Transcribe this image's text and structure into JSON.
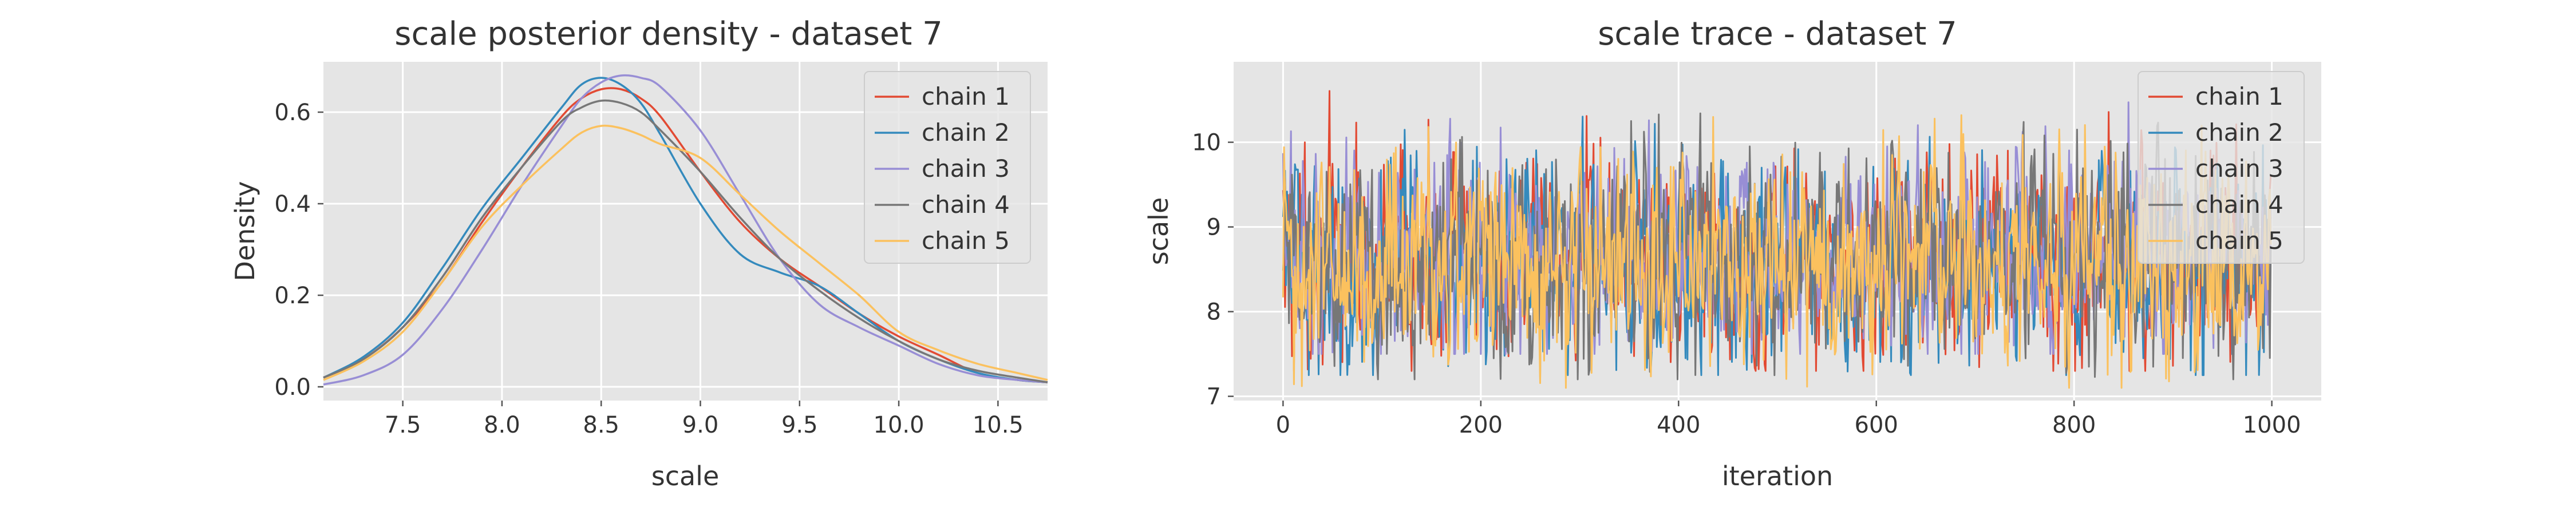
{
  "chart_data": [
    {
      "type": "line",
      "title": "scale posterior density - dataset 7",
      "xlabel": "scale",
      "ylabel": "Density",
      "xlim": [
        7.1,
        10.75
      ],
      "ylim": [
        -0.03,
        0.71
      ],
      "xticks": [
        7.5,
        8.0,
        8.5,
        9.0,
        9.5,
        10.0,
        10.5
      ],
      "xtick_labels": [
        "7.5",
        "8.0",
        "8.5",
        "9.0",
        "9.5",
        "10.0",
        "10.5"
      ],
      "yticks": [
        0.0,
        0.2,
        0.4,
        0.6
      ],
      "ytick_labels": [
        "0.0",
        "0.2",
        "0.4",
        "0.6"
      ],
      "grid": true,
      "legend": "top-right",
      "x": [
        7.1,
        7.3,
        7.5,
        7.7,
        7.9,
        8.1,
        8.3,
        8.4,
        8.5,
        8.6,
        8.7,
        8.8,
        9.0,
        9.2,
        9.4,
        9.6,
        9.8,
        10.0,
        10.2,
        10.4,
        10.6,
        10.75
      ],
      "series": [
        {
          "name": "chain 1",
          "color": "#E24A33",
          "values": [
            0.02,
            0.06,
            0.13,
            0.23,
            0.36,
            0.48,
            0.59,
            0.63,
            0.65,
            0.65,
            0.63,
            0.59,
            0.47,
            0.36,
            0.28,
            0.22,
            0.16,
            0.11,
            0.07,
            0.03,
            0.015,
            0.01
          ]
        },
        {
          "name": "chain 2",
          "color": "#348ABD",
          "values": [
            0.02,
            0.065,
            0.14,
            0.26,
            0.39,
            0.5,
            0.61,
            0.66,
            0.675,
            0.66,
            0.62,
            0.55,
            0.4,
            0.29,
            0.25,
            0.22,
            0.16,
            0.1,
            0.06,
            0.03,
            0.015,
            0.01
          ]
        },
        {
          "name": "chain 3",
          "color": "#988ED5",
          "values": [
            0.005,
            0.025,
            0.07,
            0.17,
            0.3,
            0.44,
            0.57,
            0.63,
            0.665,
            0.68,
            0.675,
            0.655,
            0.56,
            0.42,
            0.28,
            0.18,
            0.13,
            0.09,
            0.05,
            0.025,
            0.015,
            0.01
          ]
        },
        {
          "name": "chain 4",
          "color": "#777777",
          "values": [
            0.02,
            0.06,
            0.13,
            0.24,
            0.37,
            0.48,
            0.58,
            0.61,
            0.625,
            0.62,
            0.6,
            0.56,
            0.47,
            0.37,
            0.28,
            0.21,
            0.15,
            0.1,
            0.06,
            0.035,
            0.02,
            0.01
          ]
        },
        {
          "name": "chain 5",
          "color": "#FBC15E",
          "values": [
            0.015,
            0.055,
            0.12,
            0.23,
            0.35,
            0.44,
            0.52,
            0.555,
            0.57,
            0.565,
            0.55,
            0.53,
            0.5,
            0.42,
            0.34,
            0.27,
            0.2,
            0.12,
            0.08,
            0.05,
            0.03,
            0.015
          ]
        }
      ]
    },
    {
      "type": "line",
      "title": "scale trace - dataset 7",
      "xlabel": "iteration",
      "ylabel": "scale",
      "xlim": [
        -50,
        1050
      ],
      "ylim": [
        6.95,
        10.95
      ],
      "xticks": [
        0,
        200,
        400,
        600,
        800,
        1000
      ],
      "xtick_labels": [
        "0",
        "200",
        "400",
        "600",
        "800",
        "1000"
      ],
      "yticks": [
        7,
        8,
        9,
        10
      ],
      "ytick_labels": [
        "7",
        "8",
        "9",
        "10"
      ],
      "grid": true,
      "legend": "top-right",
      "n_iterations": 1000,
      "series": [
        {
          "name": "chain 1",
          "color": "#E24A33",
          "mean": 8.6,
          "sd": 0.6,
          "min": 7.3,
          "max": 10.7
        },
        {
          "name": "chain 2",
          "color": "#348ABD",
          "mean": 8.6,
          "sd": 0.6,
          "min": 7.25,
          "max": 10.5
        },
        {
          "name": "chain 3",
          "color": "#988ED5",
          "mean": 8.65,
          "sd": 0.6,
          "min": 7.5,
          "max": 10.8
        },
        {
          "name": "chain 4",
          "color": "#777777",
          "mean": 8.6,
          "sd": 0.6,
          "min": 7.2,
          "max": 10.7
        },
        {
          "name": "chain 5",
          "color": "#FBC15E",
          "mean": 8.6,
          "sd": 0.6,
          "min": 7.1,
          "max": 10.75
        }
      ]
    }
  ]
}
